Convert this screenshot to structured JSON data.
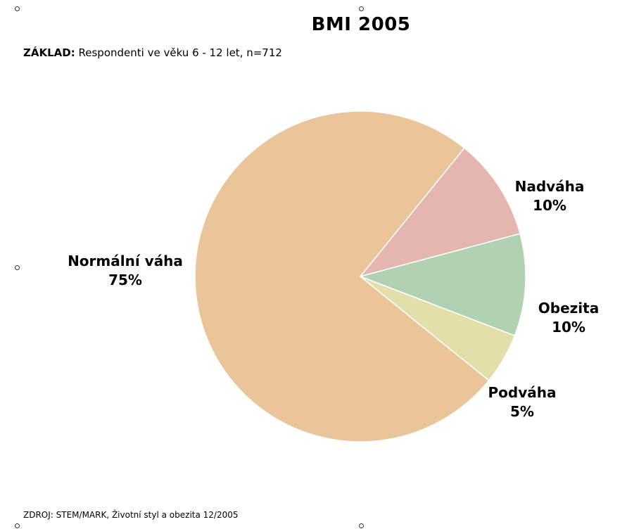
{
  "title": "BMI 2005",
  "base": {
    "label": "ZÁKLAD:",
    "text": "Respondenti ve věku 6 - 12 let, n=712"
  },
  "source": "ZDROJ: STEM/MARK, Životní styl a obezita 12/2005",
  "chart_data": {
    "type": "pie",
    "title": "BMI 2005",
    "slices": [
      {
        "name": "Nadváha",
        "value": 10,
        "label": "10%",
        "color": "#e5b5b0"
      },
      {
        "name": "Obezita",
        "value": 10,
        "label": "10%",
        "color": "#b0d2b3"
      },
      {
        "name": "Podváha",
        "value": 5,
        "label": "5%",
        "color": "#e2dfab"
      },
      {
        "name": "Normální váha",
        "value": 75,
        "label": "75%",
        "color": "#ebc59a"
      }
    ]
  }
}
